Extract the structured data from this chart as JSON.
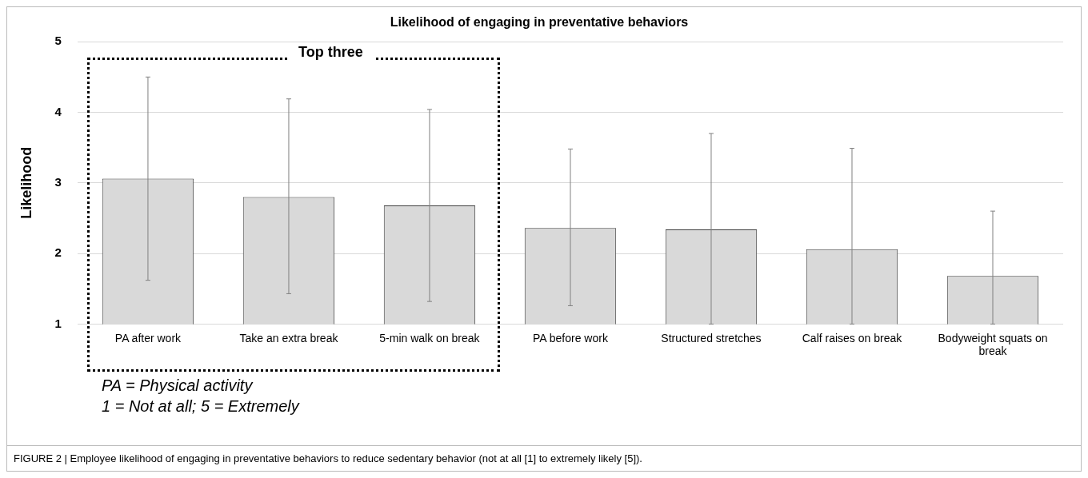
{
  "chart_data": {
    "type": "bar",
    "title": "Likelihood of engaging in preventative behaviors",
    "ylabel": "Likelihood",
    "categories": [
      "PA after work",
      "Take an extra break",
      "5-min walk on break",
      "PA before work",
      "Structured stretches",
      "Calf raises on break",
      "Bodyweight squats on break"
    ],
    "values": [
      3.06,
      2.8,
      2.68,
      2.36,
      2.34,
      2.06,
      1.68
    ],
    "errors": [
      [
        1.62,
        4.5
      ],
      [
        1.43,
        4.19
      ],
      [
        1.32,
        4.04
      ],
      [
        1.26,
        3.48
      ],
      [
        1.0,
        3.7
      ],
      [
        1.0,
        3.49
      ],
      [
        1.0,
        2.6
      ]
    ],
    "color": "#d9d9d9",
    "ylim": [
      1,
      5
    ],
    "yticks": [
      1,
      2,
      3,
      4,
      5
    ],
    "grid": "y",
    "annotations": [
      "Top three",
      "PA = Physical activity",
      "1 = Not at all; 5 = Extremely",
      "FIGURE 2 | Employee likelihood of engaging in preventative behaviors to reduce sedentary behavior (not at all [1] to extremely likely [5])."
    ]
  }
}
